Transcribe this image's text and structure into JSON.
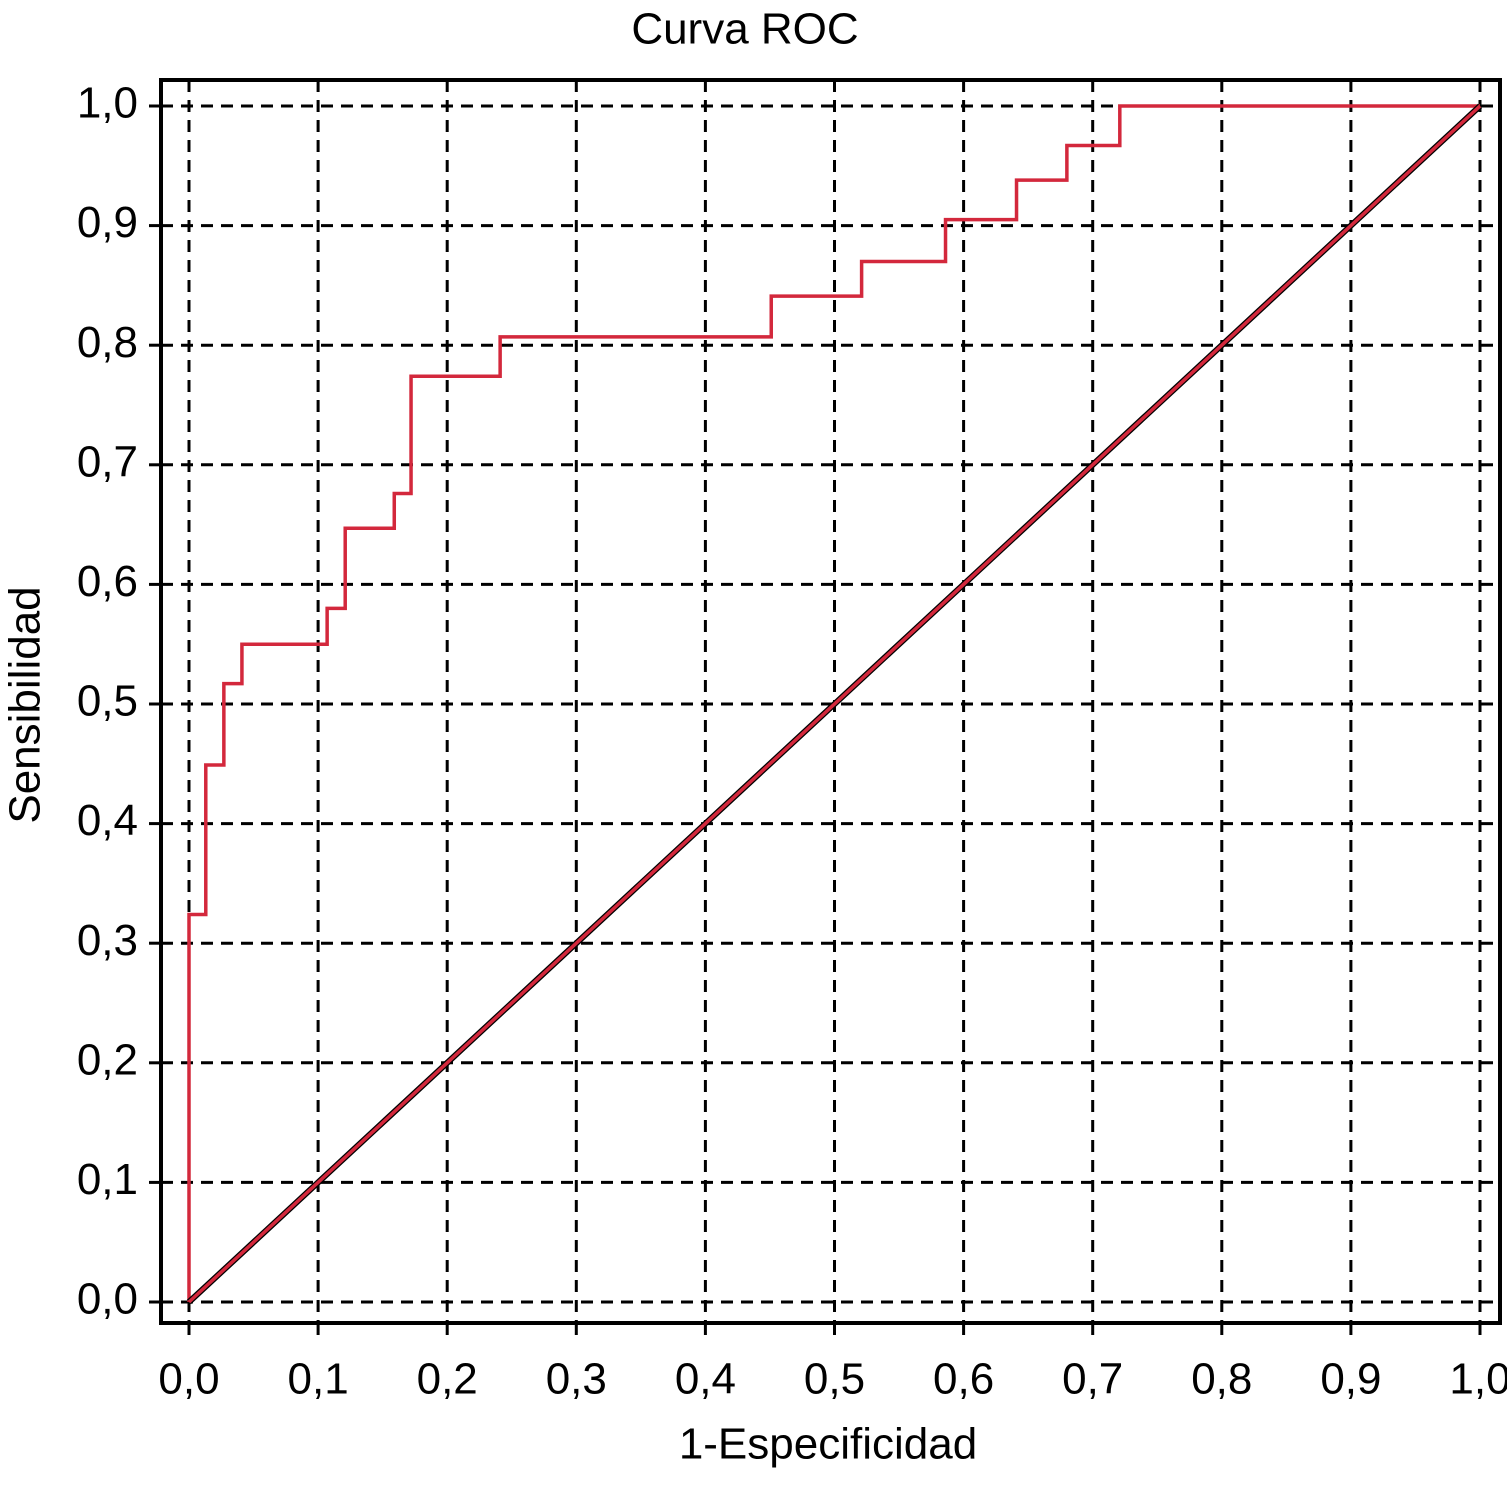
{
  "chart_data": {
    "type": "line",
    "title": "Curva ROC",
    "xlabel": "1-Especificidad",
    "ylabel": "Sensibilidad",
    "xlim": [
      0,
      1
    ],
    "ylim": [
      0,
      1
    ],
    "xticks": [
      {
        "value": 0,
        "label": "0,0"
      },
      {
        "value": 0.1,
        "label": "0,1"
      },
      {
        "value": 0.2,
        "label": "0,2"
      },
      {
        "value": 0.3,
        "label": "0,3"
      },
      {
        "value": 0.4,
        "label": "0,4"
      },
      {
        "value": 0.5,
        "label": "0,5"
      },
      {
        "value": 0.6,
        "label": "0,6"
      },
      {
        "value": 0.7,
        "label": "0,7"
      },
      {
        "value": 0.8,
        "label": "0,8"
      },
      {
        "value": 0.9,
        "label": "0,9"
      },
      {
        "value": 1,
        "label": "1,0"
      }
    ],
    "yticks": [
      {
        "value": 0,
        "label": "0,0"
      },
      {
        "value": 0.1,
        "label": "0,1"
      },
      {
        "value": 0.2,
        "label": "0,2"
      },
      {
        "value": 0.3,
        "label": "0,3"
      },
      {
        "value": 0.4,
        "label": "0,4"
      },
      {
        "value": 0.5,
        "label": "0,5"
      },
      {
        "value": 0.6,
        "label": "0,6"
      },
      {
        "value": 0.7,
        "label": "0,7"
      },
      {
        "value": 0.8,
        "label": "0,8"
      },
      {
        "value": 0.9,
        "label": "0,9"
      },
      {
        "value": 1,
        "label": "1,0"
      }
    ],
    "grid": true,
    "series": [
      {
        "color": "#d3283c",
        "x": [
          0,
          0,
          0.013,
          0.013,
          0.027,
          0.027,
          0.041,
          0.041,
          0.107,
          0.107,
          0.121,
          0.121,
          0.159,
          0.159,
          0.172,
          0.172,
          0.241,
          0.241,
          0.451,
          0.451,
          0.521,
          0.521,
          0.586,
          0.586,
          0.641,
          0.641,
          0.68,
          0.68,
          0.721,
          0.721,
          1
        ],
        "y": [
          0,
          0.324,
          0.324,
          0.449,
          0.449,
          0.517,
          0.517,
          0.55,
          0.55,
          0.58,
          0.58,
          0.647,
          0.647,
          0.676,
          0.676,
          0.774,
          0.774,
          0.807,
          0.807,
          0.841,
          0.841,
          0.87,
          0.87,
          0.905,
          0.905,
          0.938,
          0.938,
          0.967,
          0.967,
          1,
          1
        ]
      },
      {
        "color": "#d3283c",
        "x": [
          0,
          1
        ],
        "y": [
          0,
          1
        ]
      }
    ]
  }
}
